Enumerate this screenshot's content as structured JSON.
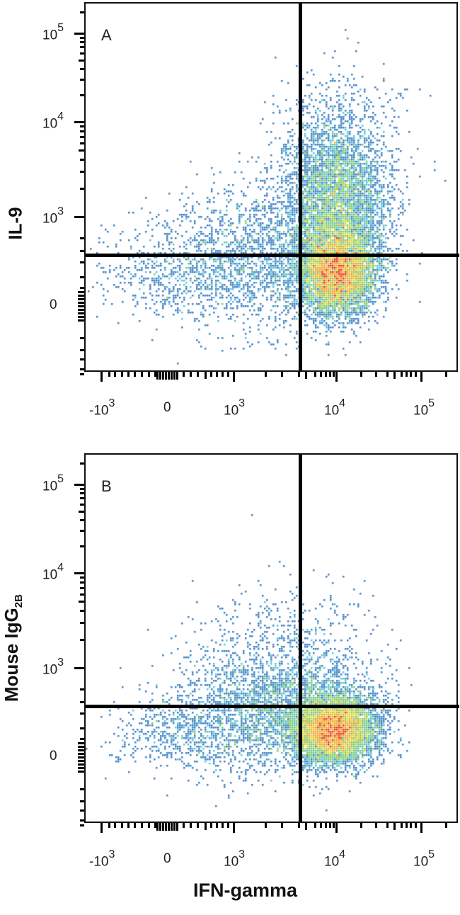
{
  "chart_data": [
    {
      "type": "scatter",
      "subtype": "flow-cytometry-density-dot-plot",
      "panel_label": "A",
      "xlabel": "IFN-gamma",
      "ylabel": "IL-9",
      "x_scale": "biexponential",
      "y_scale": "biexponential",
      "x_tick_labels": [
        "-10^3",
        "0",
        "10^3",
        "10^4",
        "10^5"
      ],
      "y_tick_labels": [
        "0",
        "10^3",
        "10^4",
        "10^5"
      ],
      "quadrant_gate": {
        "x": 4000,
        "y": 450
      },
      "populations": [
        {
          "name": "main IFN-gamma+ cluster",
          "x_center": 10000,
          "y_center": 250,
          "density": "high (red core)"
        },
        {
          "name": "IL-9+ IFN-gamma+ extension",
          "x_center": 10000,
          "y_center": 1000,
          "y_max": 8000,
          "density": "medium (green/yellow)"
        },
        {
          "name": "IFN-gamma- tail",
          "x_range": [
            -1000,
            4000
          ],
          "y_range": [
            0,
            2000
          ],
          "density": "low (blue)"
        }
      ],
      "grid": false,
      "legend": null
    },
    {
      "type": "scatter",
      "subtype": "flow-cytometry-density-dot-plot",
      "panel_label": "B",
      "xlabel": "IFN-gamma",
      "ylabel": "Mouse IgG2B",
      "x_scale": "biexponential",
      "y_scale": "biexponential",
      "x_tick_labels": [
        "-10^3",
        "0",
        "10^3",
        "10^4",
        "10^5"
      ],
      "y_tick_labels": [
        "0",
        "10^3",
        "10^4",
        "10^5"
      ],
      "quadrant_gate": {
        "x": 4000,
        "y": 450
      },
      "populations": [
        {
          "name": "main IFN-gamma+ cluster",
          "x_center": 9000,
          "y_center": 200,
          "density": "high (red core)"
        },
        {
          "name": "IFN-gamma- tail",
          "x_range": [
            -1000,
            4000
          ],
          "y_range": [
            0,
            2500
          ],
          "density": "low (blue)"
        }
      ],
      "grid": false,
      "legend": null
    }
  ],
  "panels": {
    "A": {
      "letter": "A",
      "ylabel": "IL-9"
    },
    "B": {
      "letter": "B",
      "ylabel_main": "Mouse IgG",
      "ylabel_sub": "2B"
    }
  },
  "axes": {
    "xlabel": "IFN-gamma",
    "x_ticks": [
      {
        "base": "-10",
        "exp": "3",
        "pos": 0
      },
      {
        "base": "0",
        "exp": "",
        "pos": 1
      },
      {
        "base": "10",
        "exp": "3",
        "pos": 2
      },
      {
        "base": "10",
        "exp": "4",
        "pos": 3
      },
      {
        "base": "10",
        "exp": "5",
        "pos": 4
      }
    ],
    "y_ticks": [
      {
        "base": "10",
        "exp": "5"
      },
      {
        "base": "10",
        "exp": "4"
      },
      {
        "base": "10",
        "exp": "3"
      },
      {
        "base": "0",
        "exp": ""
      }
    ]
  },
  "colors": {
    "density_scale": [
      "#2b4a9e",
      "#3a7fc4",
      "#5cc3d8",
      "#7cc96a",
      "#d9d93a",
      "#f2a52a",
      "#e8321e"
    ]
  }
}
